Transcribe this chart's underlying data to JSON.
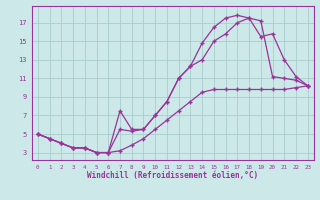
{
  "xlabel": "Windchill (Refroidissement éolien,°C)",
  "bg_color": "#cce8e8",
  "line_color": "#993399",
  "grid_color": "#aacccc",
  "ylim": [
    2.2,
    18.8
  ],
  "xlim": [
    -0.5,
    23.5
  ],
  "yticks": [
    3,
    5,
    7,
    9,
    11,
    13,
    15,
    17
  ],
  "xticks": [
    0,
    1,
    2,
    3,
    4,
    5,
    6,
    7,
    8,
    9,
    10,
    11,
    12,
    13,
    14,
    15,
    16,
    17,
    18,
    19,
    20,
    21,
    22,
    23
  ],
  "curve1_x": [
    0,
    1,
    2,
    3,
    4,
    5,
    6,
    7,
    8,
    9,
    10,
    11,
    12,
    13,
    14,
    15,
    16,
    17,
    18,
    19,
    20,
    21,
    22,
    23
  ],
  "curve1_y": [
    5.0,
    4.5,
    4.0,
    3.5,
    3.5,
    3.0,
    3.0,
    3.2,
    3.8,
    4.5,
    5.5,
    6.5,
    7.5,
    8.5,
    9.5,
    9.8,
    9.8,
    9.8,
    9.8,
    9.8,
    9.8,
    9.8,
    10.0,
    10.2
  ],
  "curve2_x": [
    0,
    1,
    2,
    3,
    4,
    5,
    6,
    7,
    8,
    9,
    10,
    11,
    12,
    13,
    14,
    15,
    16,
    17,
    18,
    19,
    20,
    21,
    22,
    23
  ],
  "curve2_y": [
    5.0,
    4.5,
    4.0,
    3.5,
    3.5,
    3.0,
    3.0,
    5.5,
    5.3,
    5.5,
    7.0,
    8.5,
    11.0,
    12.3,
    13.0,
    15.0,
    15.8,
    17.0,
    17.5,
    15.5,
    15.8,
    13.0,
    11.2,
    10.2
  ],
  "curve3_x": [
    0,
    1,
    2,
    3,
    4,
    5,
    6,
    7,
    8,
    9,
    10,
    11,
    12,
    13,
    14,
    15,
    16,
    17,
    18,
    19,
    20,
    21,
    22,
    23
  ],
  "curve3_y": [
    5.0,
    4.5,
    4.0,
    3.5,
    3.5,
    3.0,
    3.0,
    7.5,
    5.5,
    5.5,
    7.0,
    8.5,
    11.0,
    12.3,
    14.8,
    16.5,
    17.5,
    17.8,
    17.5,
    17.2,
    11.2,
    11.0,
    10.8,
    10.2
  ]
}
